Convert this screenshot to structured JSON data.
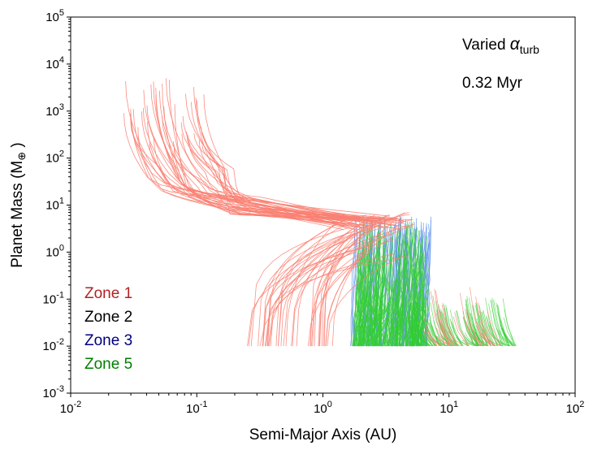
{
  "chart_data": {
    "type": "line",
    "title": "",
    "xlabel": "Semi-Major Axis (AU)",
    "ylabel_main": "Planet Mass (M",
    "ylabel_sub": "⊕",
    "ylabel_close": " )",
    "x_scale": "log",
    "y_scale": "log",
    "xlim": [
      0.01,
      100
    ],
    "ylim": [
      0.001,
      100000
    ],
    "x_tick_exponents": [
      "-2",
      "-1",
      "0",
      "1",
      "2"
    ],
    "y_tick_exponents": [
      "-3",
      "-2",
      "-1",
      "0",
      "1",
      "2",
      "3",
      "4",
      "5"
    ],
    "tick_base": "10",
    "grid": false,
    "legend_placement": "lower-left",
    "annotations": {
      "varied_prefix": "Varied ",
      "alpha_symbol": "α",
      "alpha_subscript": "turb",
      "time": "0.32 Myr"
    },
    "zones": [
      {
        "label": "Zone 1",
        "color": "#b22222"
      },
      {
        "label": "Zone 2",
        "color": "#000000"
      },
      {
        "label": "Zone 3",
        "color": "#000080"
      },
      {
        "label": "Zone 5",
        "color": "#007f00"
      }
    ],
    "series_colors": {
      "zone1": "#fa8072",
      "zone3": "#6495ed",
      "zone5": "#32cd32"
    },
    "track_families": {
      "zone1_giant_tracks": {
        "start_a_range": [
          0.026,
          0.12
        ],
        "start_mass_range": [
          200,
          6000
        ],
        "end_a_range": [
          1.5,
          5.5
        ],
        "end_mass": 5
      },
      "zone1_low_mass_tracks": {
        "start_a_range": [
          0.25,
          1.2
        ],
        "start_mass": 0.01,
        "end_mass_range": [
          1,
          8
        ]
      },
      "zone3_tracks": {
        "a_range": [
          1.6,
          8
        ],
        "mass_range": [
          0.01,
          6
        ]
      },
      "zone5_tracks": {
        "a_range": [
          1.7,
          35
        ],
        "mass_range": [
          0.01,
          5
        ]
      }
    }
  }
}
